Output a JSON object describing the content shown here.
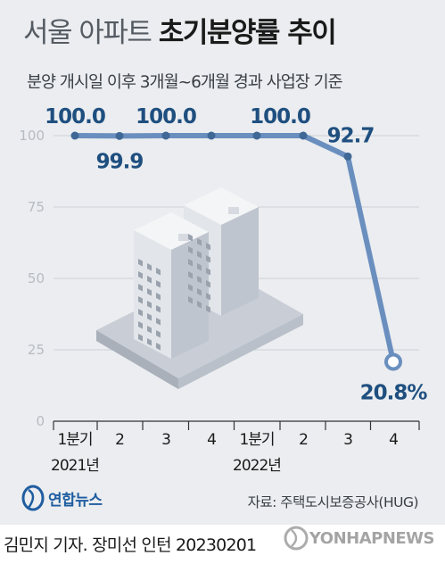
{
  "header": {
    "title_light": "서울 아파트",
    "title_bold": "초기분양률 추이",
    "subtitle": "분양 개시일 이후 3개월~6개월 경과 사업장 기준"
  },
  "chart_data": {
    "type": "line",
    "categories": [
      "1분기",
      "2",
      "3",
      "4",
      "1분기",
      "2",
      "3",
      "4"
    ],
    "year_labels": [
      "2021년",
      "2022년"
    ],
    "values": [
      100.0,
      99.9,
      100.0,
      100.0,
      100.0,
      100.0,
      92.7,
      20.8
    ],
    "data_labels": [
      "100.0",
      "99.9",
      "100.0",
      "",
      "",
      "100.0",
      "92.7",
      "20.8%"
    ],
    "yticks": [
      0,
      25,
      50,
      75,
      100
    ],
    "ylim": [
      0,
      100
    ],
    "grid": true,
    "colors": {
      "line": "#6a8fbf",
      "label": "#1f4f7f",
      "tick": "#b7bcc2",
      "grid": "#cdd1d6"
    }
  },
  "footer": {
    "logo_text": "연합뉴스",
    "source": "자료: 주택도시보증공사(HUG)",
    "credit": "김민지 기자. 장미선 인턴  20230201",
    "watermark": "YONHAPNEWS"
  }
}
